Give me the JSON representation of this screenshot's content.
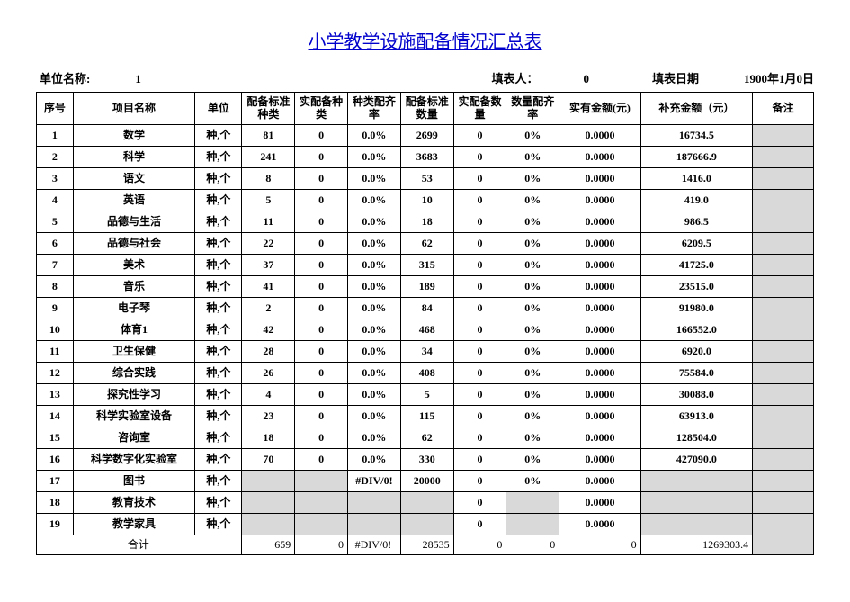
{
  "title": "小学教学设施配备情况汇总表",
  "meta": {
    "unit_label": "单位名称:",
    "unit_value": "1",
    "filler_label": "填表人：",
    "filler_value": "0",
    "date_label": "填表日期",
    "date_value": "1900年1月0日"
  },
  "headers": {
    "seq": "序号",
    "name": "项目名称",
    "unit": "单位",
    "c4": "配备标准种类",
    "c5": "实配备种类",
    "c6": "种类配齐率",
    "c7": "配备标准数量",
    "c8": "实配备数量",
    "c9": "数量配齐率",
    "c10": "实有金额(元)",
    "c11": "补充金额（元）",
    "c12": "备注"
  },
  "rows": [
    {
      "seq": "1",
      "name": "数学",
      "unit": "种,个",
      "c4": "81",
      "c5": "0",
      "c6": "0.0%",
      "c7": "2699",
      "c8": "0",
      "c9": "0%",
      "c10": "0.0000",
      "c11": "16734.5",
      "c12": ""
    },
    {
      "seq": "2",
      "name": "科学",
      "unit": "种,个",
      "c4": "241",
      "c5": "0",
      "c6": "0.0%",
      "c7": "3683",
      "c8": "0",
      "c9": "0%",
      "c10": "0.0000",
      "c11": "187666.9",
      "c12": ""
    },
    {
      "seq": "3",
      "name": "语文",
      "unit": "种,个",
      "c4": "8",
      "c5": "0",
      "c6": "0.0%",
      "c7": "53",
      "c8": "0",
      "c9": "0%",
      "c10": "0.0000",
      "c11": "1416.0",
      "c12": ""
    },
    {
      "seq": "4",
      "name": "英语",
      "unit": "种,个",
      "c4": "5",
      "c5": "0",
      "c6": "0.0%",
      "c7": "10",
      "c8": "0",
      "c9": "0%",
      "c10": "0.0000",
      "c11": "419.0",
      "c12": ""
    },
    {
      "seq": "5",
      "name": "品德与生活",
      "unit": "种,个",
      "c4": "11",
      "c5": "0",
      "c6": "0.0%",
      "c7": "18",
      "c8": "0",
      "c9": "0%",
      "c10": "0.0000",
      "c11": "986.5",
      "c12": ""
    },
    {
      "seq": "6",
      "name": "品德与社会",
      "unit": "种,个",
      "c4": "22",
      "c5": "0",
      "c6": "0.0%",
      "c7": "62",
      "c8": "0",
      "c9": "0%",
      "c10": "0.0000",
      "c11": "6209.5",
      "c12": ""
    },
    {
      "seq": "7",
      "name": "美术",
      "unit": "种,个",
      "c4": "37",
      "c5": "0",
      "c6": "0.0%",
      "c7": "315",
      "c8": "0",
      "c9": "0%",
      "c10": "0.0000",
      "c11": "41725.0",
      "c12": ""
    },
    {
      "seq": "8",
      "name": "音乐",
      "unit": "种,个",
      "c4": "41",
      "c5": "0",
      "c6": "0.0%",
      "c7": "189",
      "c8": "0",
      "c9": "0%",
      "c10": "0.0000",
      "c11": "23515.0",
      "c12": ""
    },
    {
      "seq": "9",
      "name": "电子琴",
      "unit": "种,个",
      "c4": "2",
      "c5": "0",
      "c6": "0.0%",
      "c7": "84",
      "c8": "0",
      "c9": "0%",
      "c10": "0.0000",
      "c11": "91980.0",
      "c12": ""
    },
    {
      "seq": "10",
      "name": "体育1",
      "unit": "种,个",
      "c4": "42",
      "c5": "0",
      "c6": "0.0%",
      "c7": "468",
      "c8": "0",
      "c9": "0%",
      "c10": "0.0000",
      "c11": "166552.0",
      "c12": ""
    },
    {
      "seq": "11",
      "name": "卫生保健",
      "unit": "种,个",
      "c4": "28",
      "c5": "0",
      "c6": "0.0%",
      "c7": "34",
      "c8": "0",
      "c9": "0%",
      "c10": "0.0000",
      "c11": "6920.0",
      "c12": ""
    },
    {
      "seq": "12",
      "name": "综合实践",
      "unit": "种,个",
      "c4": "26",
      "c5": "0",
      "c6": "0.0%",
      "c7": "408",
      "c8": "0",
      "c9": "0%",
      "c10": "0.0000",
      "c11": "75584.0",
      "c12": ""
    },
    {
      "seq": "13",
      "name": "探究性学习",
      "unit": "种,个",
      "c4": "4",
      "c5": "0",
      "c6": "0.0%",
      "c7": "5",
      "c8": "0",
      "c9": "0%",
      "c10": "0.0000",
      "c11": "30088.0",
      "c12": ""
    },
    {
      "seq": "14",
      "name": "科学实验室设备",
      "unit": "种,个",
      "c4": "23",
      "c5": "0",
      "c6": "0.0%",
      "c7": "115",
      "c8": "0",
      "c9": "0%",
      "c10": "0.0000",
      "c11": "63913.0",
      "c12": ""
    },
    {
      "seq": "15",
      "name": "咨询室",
      "unit": "种,个",
      "c4": "18",
      "c5": "0",
      "c6": "0.0%",
      "c7": "62",
      "c8": "0",
      "c9": "0%",
      "c10": "0.0000",
      "c11": "128504.0",
      "c12": ""
    },
    {
      "seq": "16",
      "name": "科学数字化实验室",
      "unit": "种,个",
      "c4": "70",
      "c5": "0",
      "c6": "0.0%",
      "c7": "330",
      "c8": "0",
      "c9": "0%",
      "c10": "0.0000",
      "c11": "427090.0",
      "c12": ""
    },
    {
      "seq": "17",
      "name": "图书",
      "unit": "种,个",
      "c4": "",
      "c5": "",
      "c6": "#DIV/0!",
      "c7": "20000",
      "c8": "0",
      "c9": "0%",
      "c10": "0.0000",
      "c11": "",
      "c12": "",
      "shade45": true
    },
    {
      "seq": "18",
      "name": "教育技术",
      "unit": "种,个",
      "c4": "",
      "c5": "",
      "c6": "",
      "c7": "",
      "c8": "0",
      "c9": "",
      "c10": "0.0000",
      "c11": "",
      "c12": "",
      "shade4_9": true
    },
    {
      "seq": "19",
      "name": "教学家具",
      "unit": "种,个",
      "c4": "",
      "c5": "",
      "c6": "",
      "c7": "",
      "c8": "0",
      "c9": "",
      "c10": "0.0000",
      "c11": "",
      "c12": "",
      "shade4_9": true
    }
  ],
  "total": {
    "label": "合计",
    "c4": "659",
    "c5": "0",
    "c6": "#DIV/0!",
    "c7": "28535",
    "c8": "0",
    "c9": "0",
    "c10": "0",
    "c11": "1269303.4",
    "c12": ""
  },
  "styling": {
    "title_color": "#0000cc",
    "border_color": "#000000",
    "shaded_bg": "#d9d9d9",
    "background": "#ffffff",
    "text_color": "#000000",
    "title_fontsize": 20,
    "body_fontsize": 12
  }
}
